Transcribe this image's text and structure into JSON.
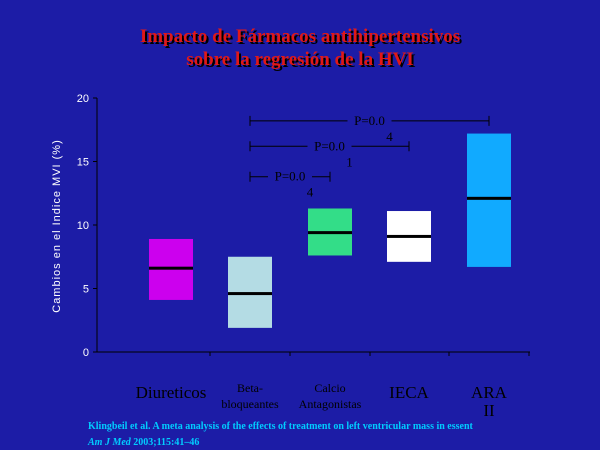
{
  "title": {
    "line1": "Impacto de Fármacos antihipertensivos",
    "line2": "sobre la regresión de la HVI"
  },
  "reference": {
    "line1": "Klingbeil et al. A meta analysis of the effects of treatment on left ventricular mass in essent",
    "journal": "Am J Med",
    "details": " 2003;115:41–46"
  },
  "colors": {
    "background": "#1c1ca6",
    "title": "#e01818",
    "reference": "#00ccff"
  },
  "chart_data": {
    "type": "box",
    "ylabel": "Cambios en el Indice MVI (%)",
    "ylim": [
      0,
      20
    ],
    "yticks": [
      0,
      5,
      10,
      15,
      20
    ],
    "categories": [
      {
        "label": [
          "Diureticos"
        ],
        "size": 17,
        "low": 4.1,
        "high": 8.9,
        "median": 6.6,
        "color": "#cc00ee"
      },
      {
        "label": [
          "Beta-",
          "bloqueantes"
        ],
        "size": 12,
        "low": 1.9,
        "high": 7.5,
        "median": 4.6,
        "color": "#b4dce4"
      },
      {
        "label": [
          "Calcio",
          "Antagonistas"
        ],
        "size": 12,
        "low": 7.6,
        "high": 11.3,
        "median": 9.4,
        "color": "#33dd88"
      },
      {
        "label": [
          "IECA"
        ],
        "size": 17,
        "low": 7.1,
        "high": 11.1,
        "median": 9.1,
        "color": "#ffffff"
      },
      {
        "label": [
          "ARA",
          "II"
        ],
        "size": 17,
        "low": 6.7,
        "high": 17.2,
        "median": 12.1,
        "color": "#11aaff"
      }
    ],
    "comparisons": [
      {
        "from": 1,
        "to": 2,
        "y": 13.8,
        "label": [
          "P=0.0",
          "4"
        ]
      },
      {
        "from": 1,
        "to": 3,
        "y": 16.2,
        "label": [
          "P=0.0",
          "1"
        ]
      },
      {
        "from": 1,
        "to": 4,
        "y": 18.2,
        "label": [
          "P=0.0",
          "4"
        ]
      }
    ]
  }
}
